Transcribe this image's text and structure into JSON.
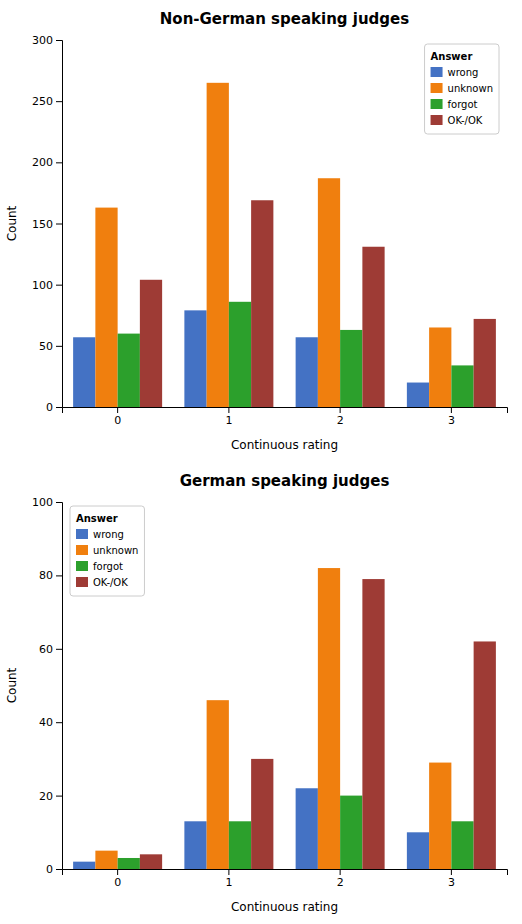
{
  "chart_data": [
    {
      "type": "bar",
      "title": "Non-German speaking judges",
      "xlabel": "Continuous rating",
      "ylabel": "Count",
      "categories": [
        "0",
        "1",
        "2",
        "3"
      ],
      "series": [
        {
          "name": "wrong",
          "color": "#4472c4",
          "values": [
            57,
            79,
            57,
            20
          ]
        },
        {
          "name": "unknown",
          "color": "#f07f0e",
          "values": [
            163,
            265,
            187,
            65
          ]
        },
        {
          "name": "forgot",
          "color": "#2ca02c",
          "values": [
            60,
            86,
            63,
            34
          ]
        },
        {
          "name": "OK-/OK",
          "color": "#9e3b35",
          "values": [
            104,
            169,
            131,
            72
          ]
        }
      ],
      "ylim": [
        0,
        300
      ],
      "yticks": [
        0,
        50,
        100,
        150,
        200,
        250,
        300
      ],
      "grid": false,
      "legend": "upper right",
      "legend_title": "Answer"
    },
    {
      "type": "bar",
      "title": "German speaking judges",
      "xlabel": "Continuous rating",
      "ylabel": "Count",
      "categories": [
        "0",
        "1",
        "2",
        "3"
      ],
      "series": [
        {
          "name": "wrong",
          "color": "#4472c4",
          "values": [
            2,
            13,
            22,
            10
          ]
        },
        {
          "name": "unknown",
          "color": "#f07f0e",
          "values": [
            5,
            46,
            82,
            29
          ]
        },
        {
          "name": "forgot",
          "color": "#2ca02c",
          "values": [
            3,
            13,
            20,
            13
          ]
        },
        {
          "name": "OK-/OK",
          "color": "#9e3b35",
          "values": [
            4,
            30,
            79,
            62
          ]
        }
      ],
      "ylim": [
        0,
        100
      ],
      "yticks": [
        0,
        20,
        40,
        60,
        80,
        100
      ],
      "grid": false,
      "legend": "upper left",
      "legend_title": "Answer"
    }
  ]
}
